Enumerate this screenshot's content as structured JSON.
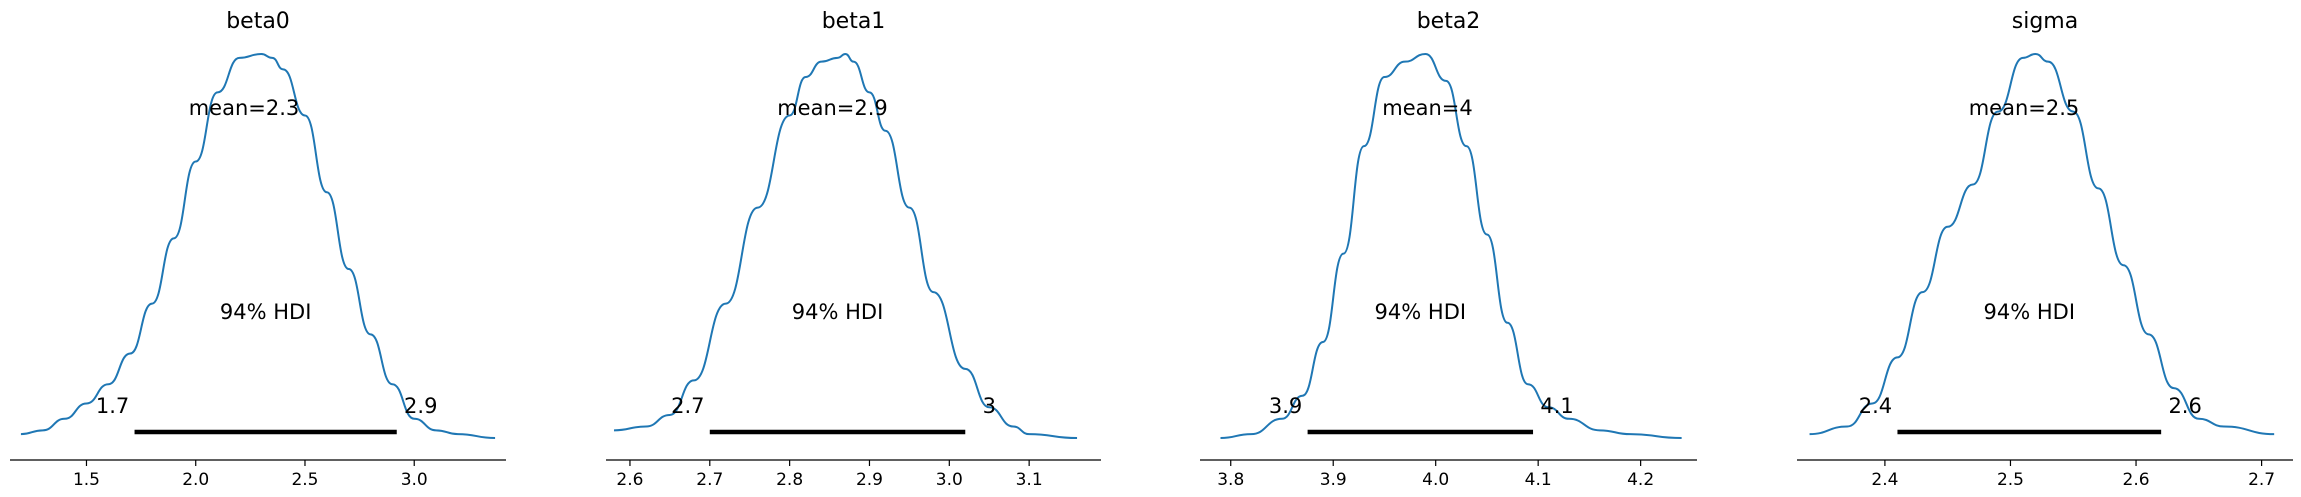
{
  "chart_data": [
    {
      "type": "area",
      "title": "beta0",
      "mean_label": "mean=2.3",
      "hdi_label": "94% HDI",
      "hdi": [
        1.72,
        2.92
      ],
      "hdi_low_label": "1.7",
      "hdi_high_label": "2.9",
      "xlim": [
        1.15,
        3.42
      ],
      "ticks": [
        1.5,
        2.0,
        2.5,
        3.0
      ],
      "tick_labels": [
        "1.5",
        "2.0",
        "2.5",
        "3.0"
      ],
      "density": {
        "x": [
          1.2,
          1.3,
          1.4,
          1.5,
          1.6,
          1.7,
          1.8,
          1.9,
          2.0,
          2.1,
          2.2,
          2.3,
          2.35,
          2.4,
          2.5,
          2.6,
          2.7,
          2.8,
          2.9,
          3.0,
          3.1,
          3.2,
          3.37
        ],
        "y": [
          0.01,
          0.02,
          0.05,
          0.09,
          0.14,
          0.22,
          0.35,
          0.52,
          0.72,
          0.9,
          0.99,
          1.0,
          0.99,
          0.96,
          0.84,
          0.64,
          0.44,
          0.27,
          0.14,
          0.05,
          0.02,
          0.01,
          0.0
        ]
      }
    },
    {
      "type": "area",
      "title": "beta1",
      "mean_label": "mean=2.9",
      "hdi_label": "94% HDI",
      "hdi": [
        2.7,
        3.02
      ],
      "hdi_low_label": "2.7",
      "hdi_high_label": "3",
      "xlim": [
        2.57,
        3.19
      ],
      "ticks": [
        2.6,
        2.7,
        2.8,
        2.9,
        3.0,
        3.1
      ],
      "tick_labels": [
        "2.6",
        "2.7",
        "2.8",
        "2.9",
        "3.0",
        "3.1"
      ],
      "density": {
        "x": [
          2.58,
          2.62,
          2.65,
          2.68,
          2.72,
          2.76,
          2.8,
          2.82,
          2.84,
          2.86,
          2.87,
          2.88,
          2.9,
          2.92,
          2.95,
          2.98,
          3.02,
          3.05,
          3.08,
          3.1,
          3.16
        ],
        "y": [
          0.02,
          0.03,
          0.06,
          0.15,
          0.35,
          0.6,
          0.84,
          0.94,
          0.98,
          0.99,
          1.0,
          0.98,
          0.9,
          0.8,
          0.6,
          0.38,
          0.18,
          0.08,
          0.03,
          0.01,
          0.0
        ]
      }
    },
    {
      "type": "area",
      "title": "beta2",
      "mean_label": "mean=4",
      "hdi_label": "94% HDI",
      "hdi": [
        3.875,
        4.095
      ],
      "hdi_low_label": "3.9",
      "hdi_high_label": "4.1",
      "xlim": [
        3.77,
        4.255
      ],
      "ticks": [
        3.8,
        3.9,
        4.0,
        4.1,
        4.2
      ],
      "tick_labels": [
        "3.8",
        "3.9",
        "4.0",
        "4.1",
        "4.2"
      ],
      "density": {
        "x": [
          3.79,
          3.82,
          3.85,
          3.87,
          3.89,
          3.91,
          3.93,
          3.95,
          3.97,
          3.99,
          4.01,
          4.03,
          4.05,
          4.07,
          4.09,
          4.11,
          4.13,
          4.16,
          4.19,
          4.24
        ],
        "y": [
          0.0,
          0.01,
          0.05,
          0.11,
          0.25,
          0.48,
          0.76,
          0.94,
          0.98,
          1.0,
          0.93,
          0.76,
          0.53,
          0.3,
          0.14,
          0.08,
          0.05,
          0.02,
          0.01,
          0.0
        ]
      }
    },
    {
      "type": "area",
      "title": "sigma",
      "mean_label": "mean=2.5",
      "hdi_label": "94% HDI",
      "hdi": [
        2.41,
        2.62
      ],
      "hdi_low_label": "2.4",
      "hdi_high_label": "2.6",
      "xlim": [
        2.33,
        2.725
      ],
      "ticks": [
        2.4,
        2.5,
        2.6,
        2.7
      ],
      "tick_labels": [
        "2.4",
        "2.5",
        "2.6",
        "2.7"
      ],
      "density": {
        "x": [
          2.34,
          2.37,
          2.39,
          2.41,
          2.43,
          2.45,
          2.47,
          2.49,
          2.51,
          2.52,
          2.53,
          2.55,
          2.57,
          2.59,
          2.61,
          2.63,
          2.65,
          2.67,
          2.71
        ],
        "y": [
          0.01,
          0.03,
          0.09,
          0.21,
          0.38,
          0.55,
          0.66,
          0.85,
          0.99,
          1.0,
          0.98,
          0.85,
          0.65,
          0.45,
          0.27,
          0.13,
          0.05,
          0.03,
          0.01
        ]
      }
    }
  ]
}
